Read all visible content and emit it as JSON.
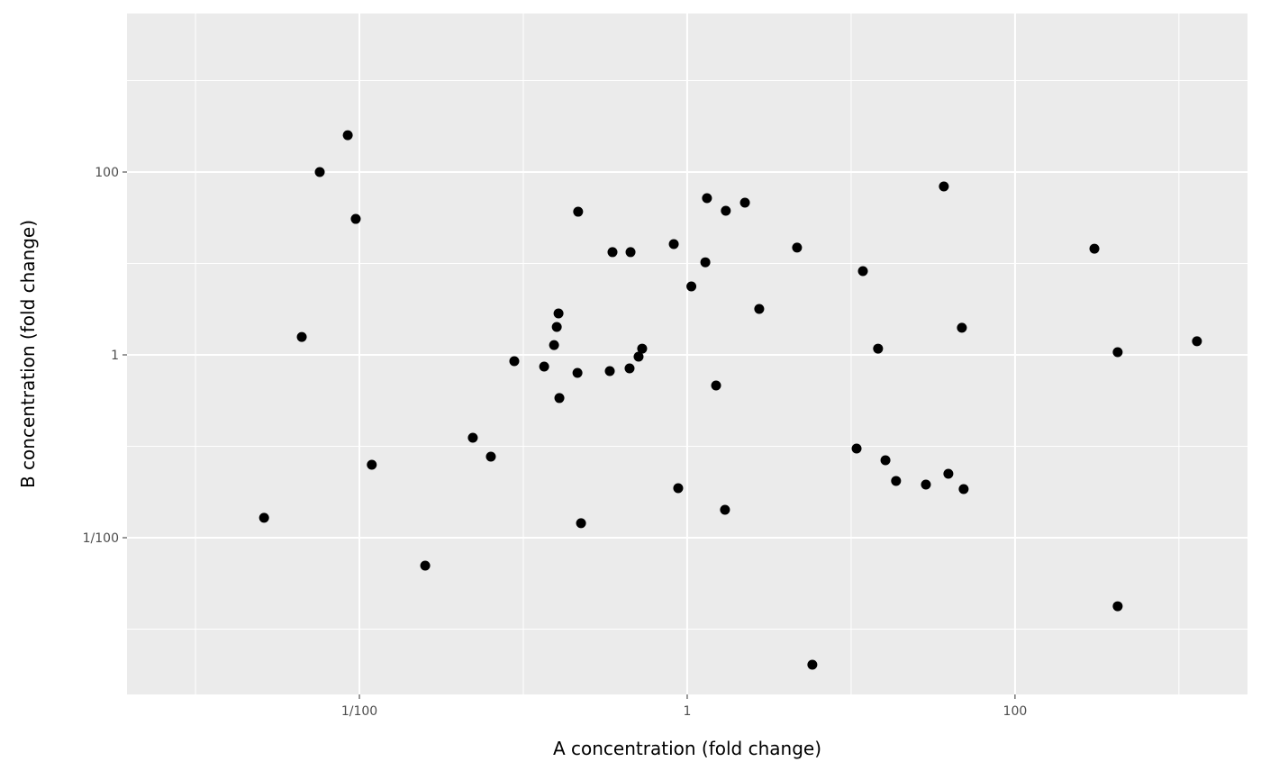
{
  "chart_data": {
    "type": "scatter",
    "xlabel": "A concentration (fold change)",
    "ylabel": "B concentration (fold change)",
    "x_scale": "log10",
    "y_scale": "log10",
    "xlim": [
      0.000382,
      2620
    ],
    "ylim": [
      0.000193,
      5420
    ],
    "grid": true,
    "panel_background": "#EBEBEB",
    "grid_color": "#FFFFFF",
    "point_color": "#000000",
    "x_ticks": [
      {
        "value": 0.01,
        "label": "1/100"
      },
      {
        "value": 1,
        "label": "1"
      },
      {
        "value": 100,
        "label": "100"
      }
    ],
    "y_ticks": [
      {
        "value": 0.01,
        "label": "1/100"
      },
      {
        "value": 1,
        "label": "1"
      },
      {
        "value": 100,
        "label": "100"
      }
    ],
    "x_minor": [
      0.001,
      0.1,
      10,
      1000
    ],
    "y_minor": [
      0.001,
      0.1,
      10,
      1000
    ],
    "points": [
      [
        0.00262,
        0.0165
      ],
      [
        0.00445,
        1.57
      ],
      [
        0.00573,
        100
      ],
      [
        0.00849,
        253
      ],
      [
        0.0095,
        30.7
      ],
      [
        0.0119,
        0.0628
      ],
      [
        0.0252,
        0.00495
      ],
      [
        0.0492,
        0.124
      ],
      [
        0.0634,
        0.077
      ],
      [
        0.0881,
        0.853
      ],
      [
        0.134,
        0.745
      ],
      [
        0.154,
        1.28
      ],
      [
        0.16,
        2.02
      ],
      [
        0.164,
        2.84
      ],
      [
        0.166,
        0.337
      ],
      [
        0.214,
        0.635
      ],
      [
        0.216,
        36.8
      ],
      [
        0.225,
        0.0144
      ],
      [
        0.337,
        0.665
      ],
      [
        0.35,
        13.3
      ],
      [
        0.445,
        0.711
      ],
      [
        0.451,
        13.3
      ],
      [
        0.505,
        0.955
      ],
      [
        0.531,
        1.17
      ],
      [
        0.828,
        16.3
      ],
      [
        0.881,
        0.0348
      ],
      [
        1.06,
        5.61
      ],
      [
        1.29,
        10.3
      ],
      [
        1.32,
        51.8
      ],
      [
        1.5,
        0.462
      ],
      [
        1.7,
        0.0202
      ],
      [
        1.72,
        37.7
      ],
      [
        2.25,
        46.2
      ],
      [
        2.75,
        3.18
      ],
      [
        4.68,
        14.9
      ],
      [
        5.8,
        0.000408
      ],
      [
        10.8,
        0.0945
      ],
      [
        11.8,
        8.25
      ],
      [
        14.6,
        1.17
      ],
      [
        16.2,
        0.0704
      ],
      [
        18.8,
        0.0418
      ],
      [
        28.6,
        0.0381
      ],
      [
        36.8,
        69.5
      ],
      [
        39.2,
        0.0501
      ],
      [
        47.4,
        1.98
      ],
      [
        48.6,
        0.034
      ],
      [
        305,
        14.5
      ],
      [
        423,
        1.07
      ],
      [
        423,
        0.00178
      ],
      [
        1288,
        1.41
      ]
    ]
  }
}
